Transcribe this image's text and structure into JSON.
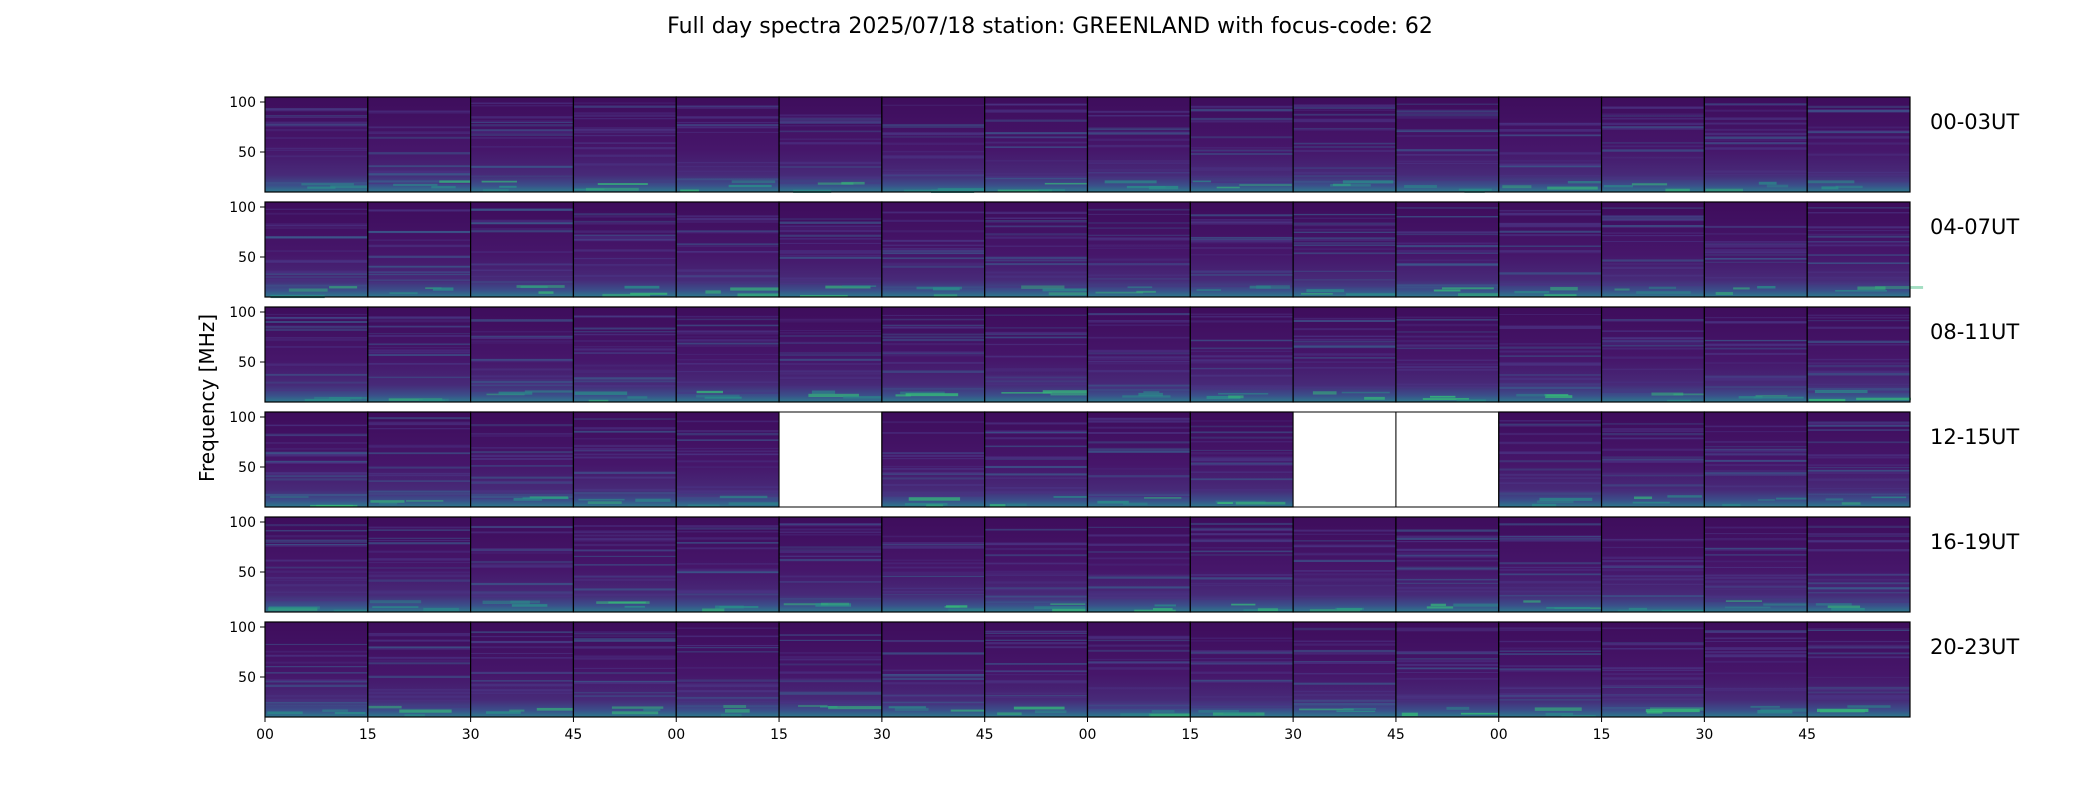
{
  "title": "Full day spectra 2025/07/18 station: GREENLAND with focus-code: 62",
  "chart_data": {
    "type": "heatmap",
    "title": "Full day spectra 2025/07/18 station: GREENLAND with focus-code: 62",
    "ylabel": "Frequency [MHz]",
    "ytick_labels": [
      "100",
      "50"
    ],
    "yticks": [
      100,
      50
    ],
    "ylim": [
      10,
      105
    ],
    "xtick_labels": [
      "00",
      "15",
      "30",
      "45",
      "00",
      "15",
      "30",
      "45",
      "00",
      "15",
      "30",
      "45",
      "00",
      "15",
      "30",
      "45"
    ],
    "colormap": "viridis",
    "colors": {
      "background": "#440154",
      "low": "#472d7b",
      "mid": "#31688e",
      "high": "#35b779",
      "frame": "#000000"
    },
    "rows": [
      {
        "label": "00-03UT",
        "missing_panels": []
      },
      {
        "label": "04-07UT",
        "missing_panels": []
      },
      {
        "label": "08-11UT",
        "missing_panels": []
      },
      {
        "label": "12-15UT",
        "missing_panels": [
          5,
          10,
          11
        ]
      },
      {
        "label": "16-19UT",
        "missing_panels": []
      },
      {
        "label": "20-23UT",
        "missing_panels": []
      }
    ],
    "panels_per_row": 16,
    "grid": false
  }
}
